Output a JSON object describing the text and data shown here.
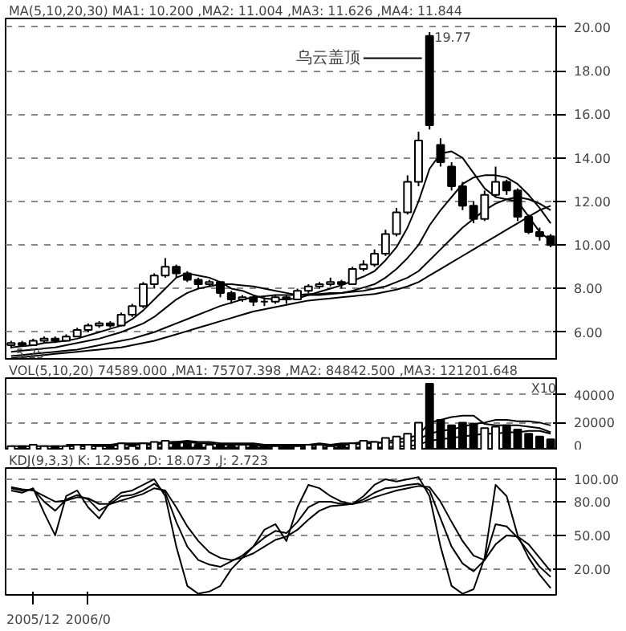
{
  "chart_data": [
    {
      "type": "candlestick",
      "title": "MA(5,10,20,30) MA1: 10.200 ,MA2: 11.004 ,MA3: 11.626 ,MA4: 11.844",
      "color": "#000000",
      "categories": [
        null,
        null,
        null,
        null,
        null,
        null,
        null,
        null,
        null,
        null,
        null,
        null,
        null,
        null,
        null,
        null,
        null,
        null,
        null,
        null,
        null,
        null,
        null,
        null,
        null,
        null,
        null,
        null,
        null,
        null,
        null,
        null,
        null,
        null,
        null,
        null,
        null,
        null,
        null,
        null,
        null,
        null,
        null,
        null,
        null,
        null,
        null,
        null,
        null,
        null
      ],
      "ohlc": [
        [
          5.4,
          5.6,
          5.25,
          5.5
        ],
        [
          5.5,
          5.6,
          5.35,
          5.4
        ],
        [
          5.4,
          5.7,
          5.4,
          5.6
        ],
        [
          5.6,
          5.8,
          5.5,
          5.7
        ],
        [
          5.7,
          5.8,
          5.5,
          5.6
        ],
        [
          5.6,
          5.9,
          5.6,
          5.8
        ],
        [
          5.8,
          6.2,
          5.8,
          6.1
        ],
        [
          6.1,
          6.4,
          6.0,
          6.3
        ],
        [
          6.3,
          6.5,
          6.2,
          6.4
        ],
        [
          6.4,
          6.5,
          6.2,
          6.3
        ],
        [
          6.3,
          6.9,
          6.3,
          6.8
        ],
        [
          6.8,
          7.3,
          6.7,
          7.2
        ],
        [
          7.2,
          8.3,
          7.1,
          8.2
        ],
        [
          8.2,
          8.7,
          8.0,
          8.6
        ],
        [
          8.6,
          9.4,
          8.5,
          9.0
        ],
        [
          9.0,
          9.1,
          8.5,
          8.7
        ],
        [
          8.7,
          8.8,
          8.3,
          8.4
        ],
        [
          8.4,
          8.5,
          8.0,
          8.2
        ],
        [
          8.2,
          8.4,
          8.1,
          8.3
        ],
        [
          8.3,
          8.3,
          7.6,
          7.8
        ],
        [
          7.8,
          7.9,
          7.3,
          7.5
        ],
        [
          7.5,
          7.7,
          7.4,
          7.6
        ],
        [
          7.6,
          7.7,
          7.2,
          7.4
        ],
        [
          7.4,
          7.6,
          7.2,
          7.4
        ],
        [
          7.4,
          7.7,
          7.3,
          7.6
        ],
        [
          7.6,
          7.7,
          7.3,
          7.5
        ],
        [
          7.5,
          8.0,
          7.5,
          7.9
        ],
        [
          7.9,
          8.2,
          7.8,
          8.1
        ],
        [
          8.1,
          8.3,
          8.0,
          8.2
        ],
        [
          8.2,
          8.5,
          8.1,
          8.3
        ],
        [
          8.3,
          8.4,
          8.0,
          8.2
        ],
        [
          8.2,
          9.0,
          8.2,
          8.9
        ],
        [
          8.9,
          9.3,
          8.8,
          9.1
        ],
        [
          9.1,
          9.8,
          9.0,
          9.6
        ],
        [
          9.6,
          10.7,
          9.5,
          10.5
        ],
        [
          10.5,
          11.7,
          10.4,
          11.5
        ],
        [
          11.5,
          13.2,
          11.4,
          12.9
        ],
        [
          12.9,
          15.2,
          12.7,
          14.8
        ],
        [
          19.6,
          19.77,
          15.3,
          15.5
        ],
        [
          14.6,
          14.9,
          13.6,
          13.8
        ],
        [
          13.6,
          13.8,
          12.5,
          12.7
        ],
        [
          12.7,
          12.9,
          11.6,
          11.8
        ],
        [
          11.8,
          12.0,
          11.0,
          11.2
        ],
        [
          11.2,
          12.5,
          11.1,
          12.3
        ],
        [
          12.3,
          13.6,
          12.2,
          12.9
        ],
        [
          12.9,
          13.0,
          12.3,
          12.5
        ],
        [
          12.5,
          12.6,
          11.1,
          11.3
        ],
        [
          11.3,
          11.4,
          10.5,
          10.6
        ],
        [
          10.6,
          10.8,
          10.2,
          10.4
        ],
        [
          10.4,
          10.5,
          9.9,
          10.0
        ]
      ],
      "series": [
        {
          "type": "line",
          "color": "#000000",
          "values": [
            5.3,
            5.35,
            5.4,
            5.5,
            5.55,
            5.6,
            5.7,
            5.85,
            6.0,
            6.15,
            6.3,
            6.6,
            7.0,
            7.5,
            8.0,
            8.5,
            8.7,
            8.6,
            8.5,
            8.3,
            8.0,
            7.9,
            7.7,
            7.55,
            7.5,
            7.5,
            7.55,
            7.7,
            7.85,
            8.0,
            8.15,
            8.35,
            8.55,
            8.8,
            9.3,
            9.9,
            10.8,
            12.0,
            13.5,
            14.2,
            14.3,
            14.0,
            13.3,
            12.6,
            12.2,
            12.1,
            12.0,
            11.3,
            10.6,
            10.2
          ]
        },
        {
          "type": "line",
          "color": "#000000",
          "values": [
            5.1,
            5.15,
            5.2,
            5.25,
            5.3,
            5.4,
            5.5,
            5.6,
            5.7,
            5.85,
            6.0,
            6.2,
            6.4,
            6.7,
            7.1,
            7.5,
            7.8,
            8.0,
            8.1,
            8.2,
            8.2,
            8.15,
            8.1,
            8.0,
            7.9,
            7.8,
            7.7,
            7.7,
            7.7,
            7.75,
            7.8,
            7.9,
            8.05,
            8.2,
            8.5,
            8.9,
            9.4,
            10.0,
            10.9,
            11.6,
            12.2,
            12.8,
            13.1,
            13.2,
            13.2,
            13.1,
            12.8,
            12.3,
            11.7,
            11.0
          ]
        },
        {
          "type": "line",
          "color": "#000000",
          "values": [
            4.9,
            4.95,
            5.0,
            5.05,
            5.1,
            5.15,
            5.2,
            5.3,
            5.4,
            5.5,
            5.6,
            5.7,
            5.85,
            6.0,
            6.2,
            6.4,
            6.6,
            6.8,
            7.0,
            7.2,
            7.35,
            7.5,
            7.6,
            7.65,
            7.7,
            7.7,
            7.7,
            7.75,
            7.75,
            7.8,
            7.8,
            7.85,
            7.9,
            8.0,
            8.1,
            8.3,
            8.5,
            8.8,
            9.3,
            9.8,
            10.3,
            10.8,
            11.2,
            11.6,
            11.9,
            12.1,
            12.2,
            12.1,
            11.9,
            11.6
          ]
        },
        {
          "type": "line",
          "color": "#000000",
          "values": [
            4.8,
            4.85,
            4.9,
            4.95,
            5.0,
            5.05,
            5.1,
            5.15,
            5.2,
            5.25,
            5.3,
            5.4,
            5.5,
            5.6,
            5.75,
            5.9,
            6.05,
            6.2,
            6.35,
            6.5,
            6.65,
            6.8,
            6.95,
            7.05,
            7.15,
            7.25,
            7.35,
            7.45,
            7.5,
            7.55,
            7.6,
            7.65,
            7.7,
            7.75,
            7.85,
            7.95,
            8.1,
            8.3,
            8.6,
            8.9,
            9.2,
            9.5,
            9.8,
            10.1,
            10.4,
            10.7,
            11.0,
            11.3,
            11.6,
            11.8
          ]
        }
      ],
      "ylim": [
        4.7,
        20.4
      ],
      "yticks": [
        {
          "value": 6,
          "label": "6.00"
        },
        {
          "value": 8,
          "label": "8.00"
        },
        {
          "value": 10,
          "label": "10.00"
        },
        {
          "value": 12,
          "label": "12.00"
        },
        {
          "value": 14,
          "label": "14.00"
        },
        {
          "value": 16,
          "label": "16.00"
        },
        {
          "value": 18,
          "label": "18.00"
        },
        {
          "value": 20,
          "label": "20.00"
        }
      ],
      "grid": "y",
      "tick_labels": "y",
      "annotations": [
        "19.77",
        "5.25",
        "乌云盖顶"
      ]
    },
    {
      "type": "bar",
      "title": "VOL(5,10,20) 74589.000 ,MA1: 75707.398 ,MA2: 84842.500 ,MA3: 121201.648",
      "categories": [
        null,
        null,
        null,
        null,
        null,
        null,
        null,
        null,
        null,
        null,
        null,
        null,
        null,
        null,
        null,
        null,
        null,
        null,
        null,
        null,
        null,
        null,
        null,
        null,
        null,
        null,
        null,
        null,
        null,
        null,
        null,
        null,
        null,
        null,
        null,
        null,
        null,
        null,
        null,
        null,
        null,
        null,
        null,
        null,
        null,
        null,
        null,
        null,
        null,
        null
      ],
      "values": [
        3000,
        3000,
        4000,
        3000,
        3000,
        3000,
        4000,
        4000,
        3000,
        3000,
        5000,
        3000,
        5000,
        6000,
        7000,
        6000,
        5000,
        4000,
        4000,
        4000,
        3000,
        4000,
        3000,
        3000,
        3000,
        4000,
        3000,
        4000,
        4000,
        3000,
        4000,
        5000,
        7000,
        6000,
        9000,
        10000,
        12000,
        20000,
        48000,
        22000,
        18000,
        20000,
        19000,
        16000,
        17000,
        18000,
        15000,
        12000,
        10000,
        8000
      ],
      "colors": [
        "#ffffff",
        "#000000",
        "#ffffff",
        "#ffffff",
        "#000000",
        "#ffffff",
        "#ffffff",
        "#ffffff",
        "#ffffff",
        "#000000",
        "#ffffff",
        "#ffffff",
        "#ffffff",
        "#ffffff",
        "#ffffff",
        "#000000",
        "#000000",
        "#000000",
        "#ffffff",
        "#000000",
        "#000000",
        "#ffffff",
        "#000000",
        "#000000",
        "#ffffff",
        "#000000",
        "#ffffff",
        "#ffffff",
        "#ffffff",
        "#ffffff",
        "#000000",
        "#ffffff",
        "#ffffff",
        "#ffffff",
        "#ffffff",
        "#ffffff",
        "#ffffff",
        "#ffffff",
        "#000000",
        "#000000",
        "#000000",
        "#000000",
        "#000000",
        "#ffffff",
        "#ffffff",
        "#000000",
        "#000000",
        "#000000",
        "#000000",
        "#000000"
      ],
      "series": [
        {
          "type": "line",
          "color": "#000000",
          "values": [
            3000,
            3000,
            3000,
            3000,
            3000,
            3000,
            3000,
            3000,
            3000,
            3000,
            4000,
            4000,
            4000,
            4000,
            5000,
            5000,
            6000,
            5000,
            5000,
            4000,
            4000,
            4000,
            4000,
            3000,
            3000,
            3000,
            3000,
            3000,
            4000,
            3000,
            4000,
            4000,
            5000,
            5000,
            6000,
            8000,
            9000,
            11000,
            20000,
            22000,
            24000,
            25000,
            25000,
            19000,
            18000,
            18000,
            18000,
            17000,
            16000,
            13000
          ]
        },
        {
          "type": "line",
          "color": "#000000",
          "values": [
            null,
            null,
            null,
            null,
            null,
            4000,
            4000,
            4000,
            4000,
            4000,
            5000,
            5000,
            5000,
            5000,
            6000,
            6000,
            7000,
            6000,
            6000,
            5000,
            5000,
            5000,
            5000,
            4000,
            4000,
            4000,
            4000,
            4000,
            5000,
            4000,
            5000,
            5000,
            6000,
            6000,
            5000,
            6000,
            6000,
            8000,
            12000,
            14000,
            15000,
            17000,
            19000,
            20000,
            22000,
            22000,
            21000,
            21000,
            20000,
            18000
          ]
        },
        {
          "type": "line",
          "color": "#000000",
          "values": [
            null,
            null,
            null,
            null,
            null,
            null,
            null,
            null,
            null,
            null,
            2000,
            2000,
            2000,
            2000,
            2000,
            2000,
            2000,
            2000,
            2000,
            2000,
            2000,
            2000,
            2000,
            2000,
            2000,
            2000,
            2000,
            2000,
            2000,
            2000,
            2000,
            2000,
            2000,
            2000,
            2000,
            3000,
            3000,
            4000,
            7000,
            8000,
            9000,
            10000,
            11000,
            12000,
            12000,
            13000,
            13000,
            14000,
            14000,
            12000
          ]
        }
      ],
      "ylim": [
        0,
        52000
      ],
      "yticks": [
        0,
        20000,
        40000
      ],
      "grid": "y",
      "tick_labels": "y",
      "annotations": [
        "X10"
      ]
    },
    {
      "type": "line",
      "title": "KDJ(9,3,3) K: 12.956 ,D: 18.073 ,J: 2.723",
      "categories": [
        null,
        null,
        "2005/12",
        null,
        null,
        null,
        null,
        "2006/0",
        null,
        null,
        null,
        null,
        null,
        null,
        null,
        null,
        null,
        null,
        null,
        null,
        null,
        null,
        null,
        null,
        null,
        null,
        null,
        null,
        null,
        null,
        null,
        null,
        null,
        null,
        null,
        null,
        null,
        null,
        null,
        null,
        null,
        null,
        null,
        null,
        null,
        null,
        null,
        null,
        null,
        null
      ],
      "series": [
        {
          "color": "#000000",
          "values": [
            90,
            88,
            92,
            70,
            50,
            85,
            90,
            75,
            65,
            80,
            88,
            90,
            95,
            100,
            85,
            40,
            5,
            -2,
            0,
            5,
            20,
            30,
            40,
            55,
            60,
            45,
            75,
            95,
            92,
            85,
            80,
            78,
            85,
            95,
            100,
            98,
            100,
            102,
            85,
            40,
            5,
            -2,
            2,
            30,
            95,
            85,
            50,
            30,
            15,
            3
          ]
        },
        {
          "color": "#000000",
          "values": [
            92,
            90,
            91,
            80,
            72,
            82,
            86,
            82,
            72,
            78,
            85,
            86,
            90,
            96,
            88,
            62,
            40,
            28,
            24,
            22,
            27,
            32,
            40,
            48,
            54,
            52,
            62,
            75,
            80,
            80,
            78,
            78,
            82,
            88,
            92,
            93,
            95,
            96,
            90,
            65,
            40,
            25,
            18,
            28,
            60,
            58,
            48,
            35,
            22,
            13.0
          ]
        },
        {
          "color": "#000000",
          "values": [
            93,
            91,
            90,
            85,
            80,
            81,
            84,
            83,
            78,
            78,
            81,
            84,
            87,
            92,
            90,
            75,
            58,
            45,
            35,
            30,
            28,
            30,
            34,
            40,
            46,
            49,
            55,
            64,
            72,
            76,
            77,
            78,
            80,
            84,
            87,
            90,
            92,
            94,
            93,
            80,
            62,
            45,
            32,
            28,
            42,
            50,
            49,
            42,
            30,
            18
          ]
        }
      ],
      "ylim": [
        -3,
        110
      ],
      "yticks": [
        {
          "value": 20,
          "label": "20.00"
        },
        {
          "value": 50,
          "label": "50.00"
        },
        {
          "value": 80,
          "label": "80.00"
        },
        {
          "value": 100,
          "label": "100.00"
        }
      ],
      "grid": "y"
    }
  ]
}
